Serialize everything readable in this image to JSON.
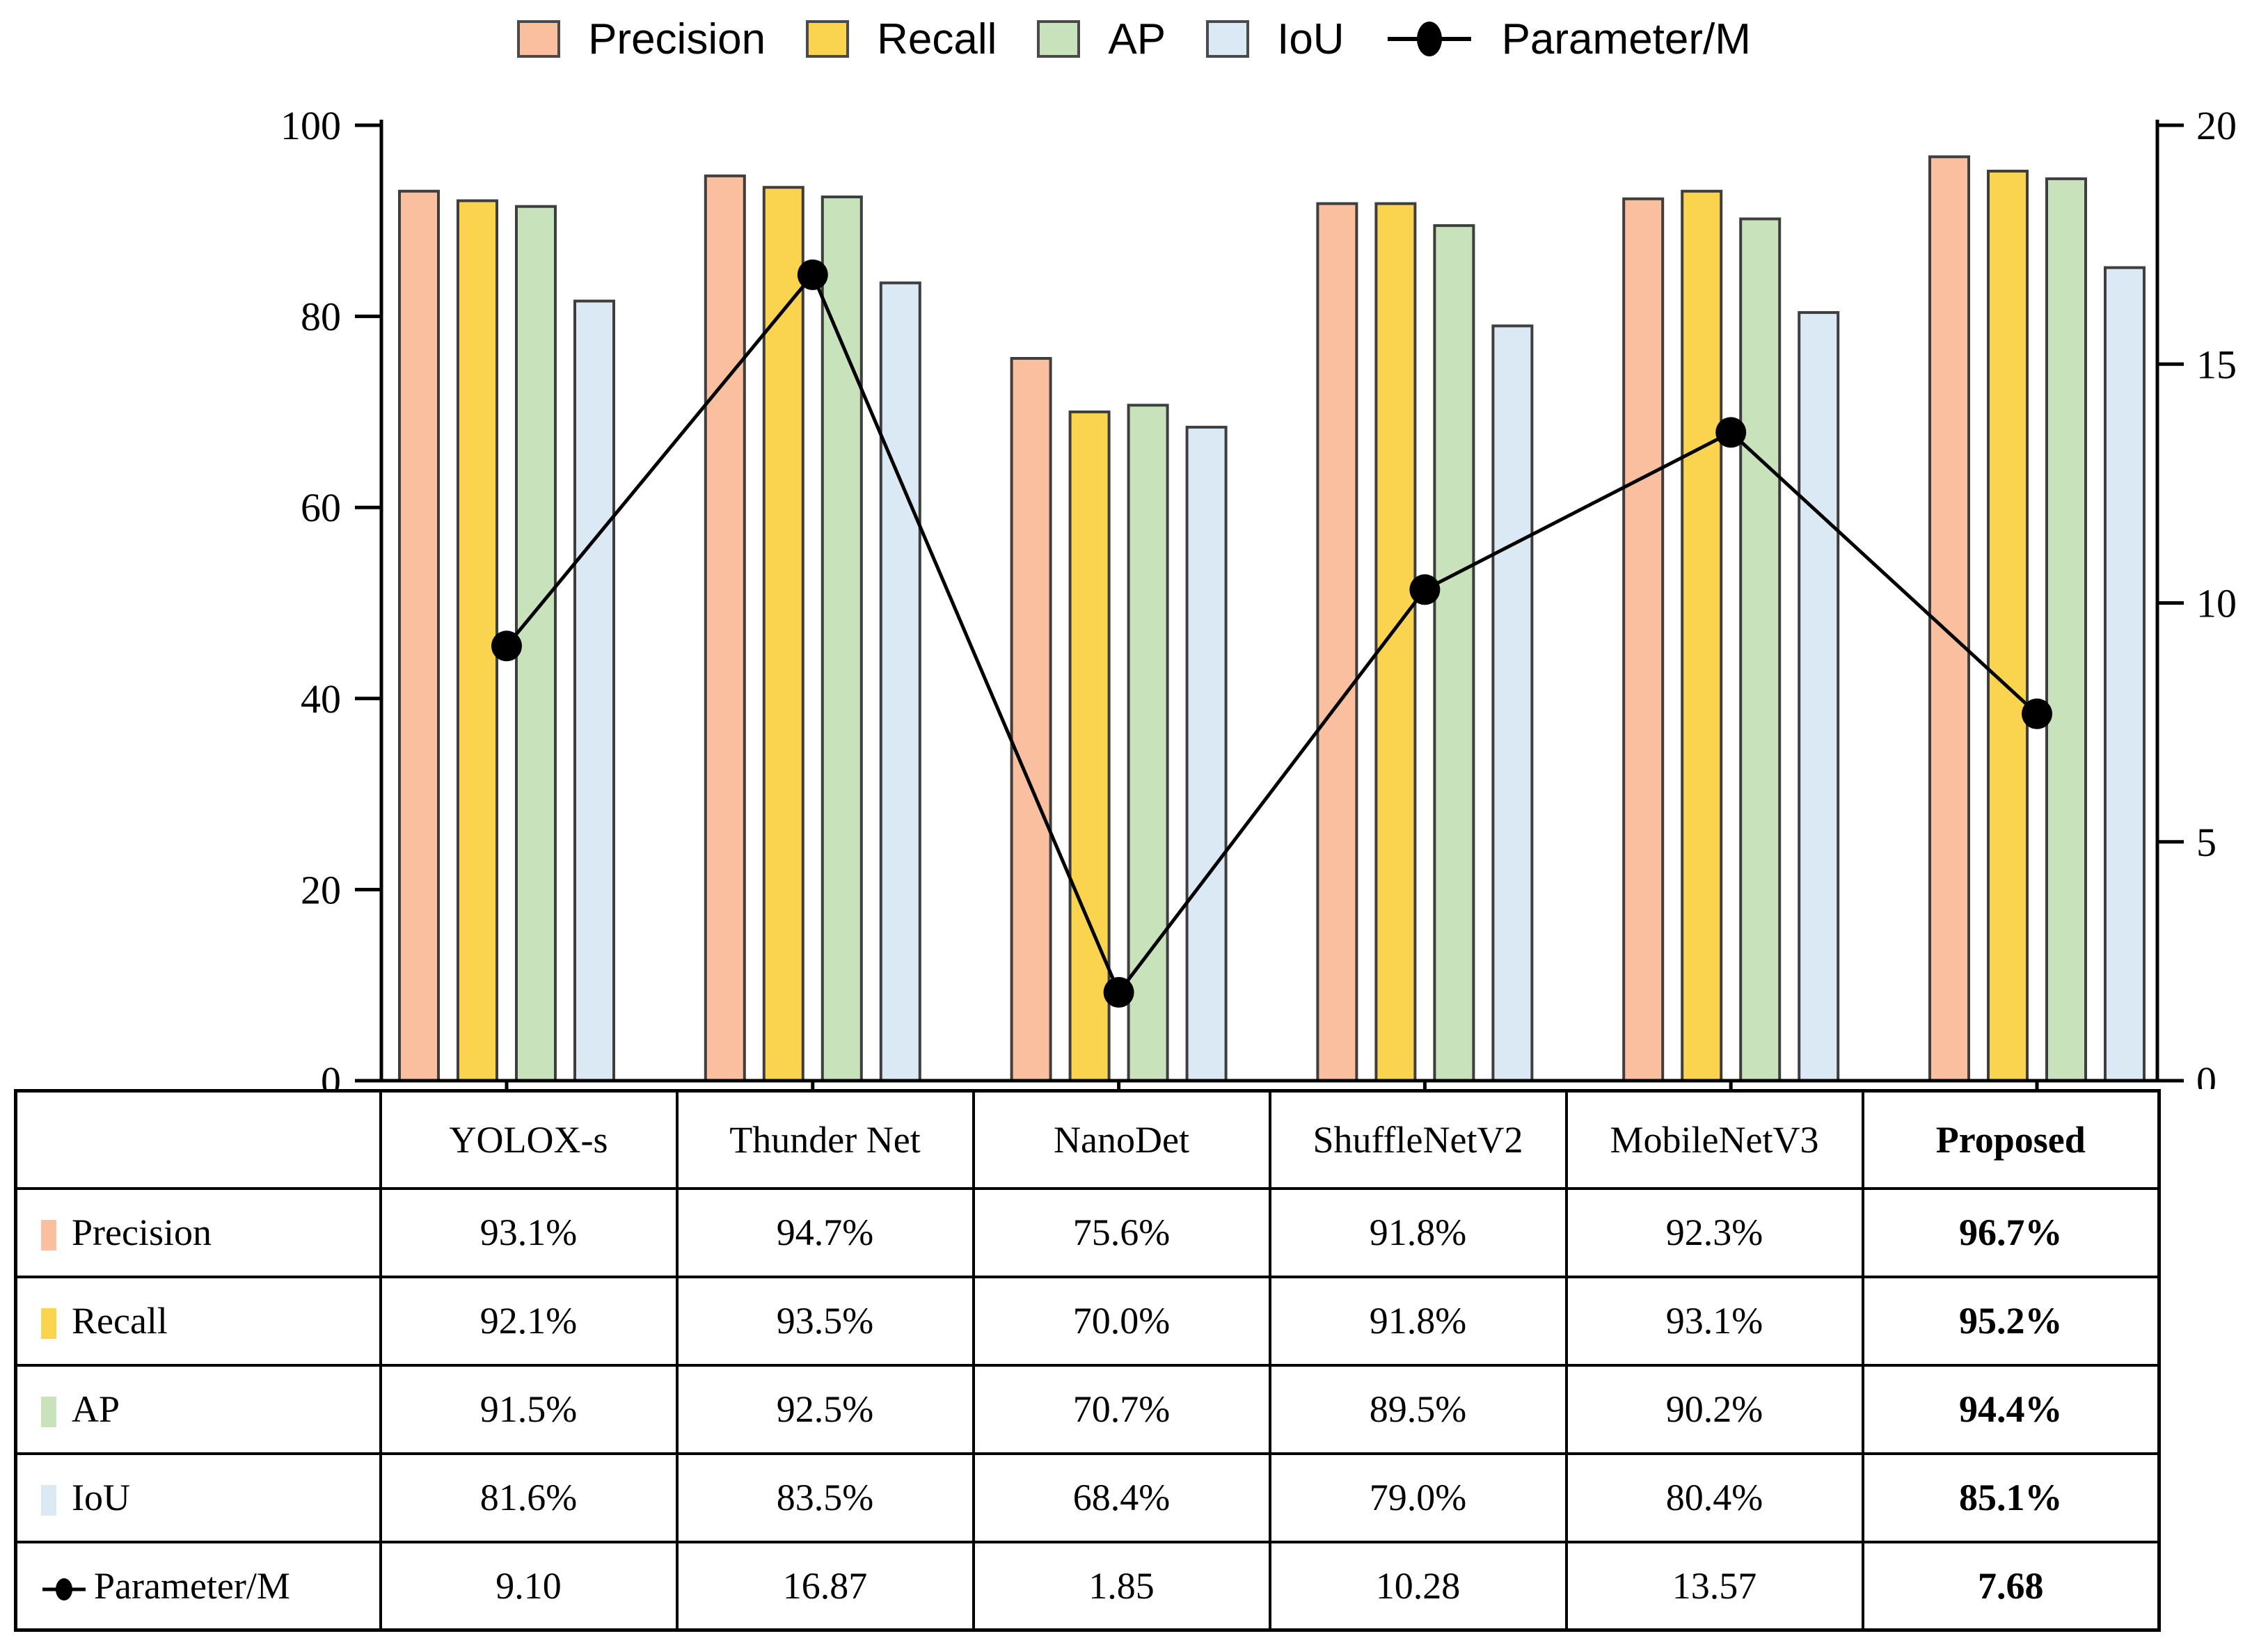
{
  "legend": {
    "items": [
      {
        "label": "Precision",
        "color": "#F9BF9E"
      },
      {
        "label": "Recall",
        "color": "#FBD44F"
      },
      {
        "label": "AP",
        "color": "#C8E3BC"
      },
      {
        "label": "IoU",
        "color": "#DBE9F5"
      },
      {
        "label": "Parameter/M",
        "color": "#000000"
      }
    ]
  },
  "chart_data": {
    "type": "bar+line",
    "categories": [
      "YOLOX-s",
      "Thunder Net",
      "NanoDet",
      "ShuffleNetV2",
      "MobileNetV3",
      "Proposed"
    ],
    "series": [
      {
        "name": "Precision",
        "axis": "left",
        "color": "#F9BF9E",
        "values": [
          93.1,
          94.7,
          75.6,
          91.8,
          92.3,
          96.7
        ]
      },
      {
        "name": "Recall",
        "axis": "left",
        "color": "#FBD44F",
        "values": [
          92.1,
          93.5,
          70.0,
          91.8,
          93.1,
          95.2
        ]
      },
      {
        "name": "AP",
        "axis": "left",
        "color": "#C8E3BC",
        "values": [
          91.5,
          92.5,
          70.7,
          89.5,
          90.2,
          94.4
        ]
      },
      {
        "name": "IoU",
        "axis": "left",
        "color": "#DBE9F5",
        "values": [
          81.6,
          83.5,
          68.4,
          79.0,
          80.4,
          85.1
        ]
      }
    ],
    "line_series": {
      "name": "Parameter/M",
      "axis": "right",
      "color": "#000000",
      "values": [
        9.1,
        16.87,
        1.85,
        10.28,
        13.57,
        7.68
      ]
    },
    "left_axis": {
      "min": 0,
      "max": 100,
      "ticks": [
        0,
        20,
        40,
        60,
        80,
        100
      ]
    },
    "right_axis": {
      "min": 0,
      "max": 20,
      "ticks": [
        0,
        5,
        10,
        15,
        20
      ]
    },
    "grid": false,
    "legend_position": "top",
    "bar_stroke": "#3E3E3E",
    "axis_color": "#000000"
  },
  "table": {
    "header": [
      "",
      "YOLOX-s",
      "Thunder Net",
      "NanoDet",
      "ShuffleNetV2",
      "MobileNetV3",
      "Proposed"
    ],
    "rows": [
      {
        "label": "Precision",
        "swatch": "#F9BF9E",
        "cells": [
          "93.1%",
          "94.7%",
          "75.6%",
          "91.8%",
          "92.3%",
          "96.7%"
        ]
      },
      {
        "label": "Recall",
        "swatch": "#FBD44F",
        "cells": [
          "92.1%",
          "93.5%",
          "70.0%",
          "91.8%",
          "93.1%",
          "95.2%"
        ]
      },
      {
        "label": "AP",
        "swatch": "#C8E3BC",
        "cells": [
          "91.5%",
          "92.5%",
          "70.7%",
          "89.5%",
          "90.2%",
          "94.4%"
        ]
      },
      {
        "label": "IoU",
        "swatch": "#DBE9F5",
        "cells": [
          "81.6%",
          "83.5%",
          "68.4%",
          "79.0%",
          "80.4%",
          "85.1%"
        ]
      },
      {
        "label": "Parameter/M",
        "swatch": "line",
        "cells": [
          "9.10",
          "16.87",
          "1.85",
          "10.28",
          "13.57",
          "7.68"
        ]
      }
    ]
  }
}
